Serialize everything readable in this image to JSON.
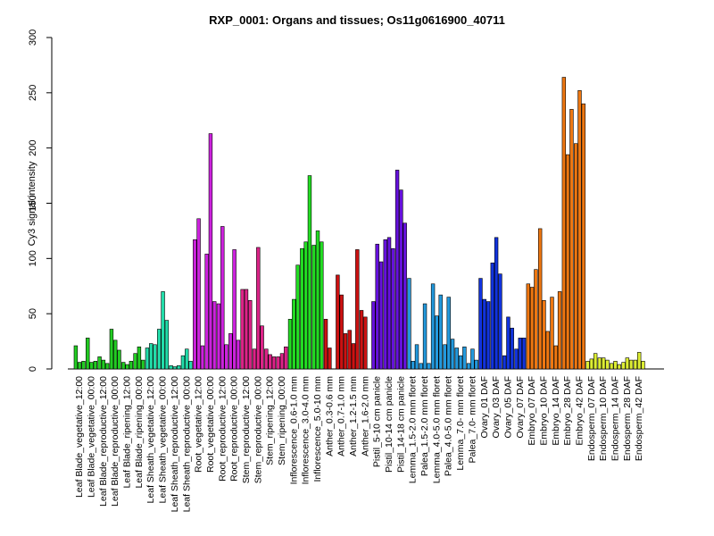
{
  "chart_data": {
    "type": "bar",
    "title": "RXP_0001: Organs and tissues; Os11g0616900_40711",
    "ylabel": "Cy3 signal intensity",
    "xlabel": "",
    "ylim": [
      0,
      300
    ],
    "yticks": [
      0,
      50,
      100,
      150,
      200,
      250,
      300
    ],
    "grid": false,
    "legend": "none",
    "categories": [
      "Leaf Blade_vegetative_12:00",
      "Leaf Blade_vegetative_00:00",
      "Leaf Blade_reproductive_12:00",
      "Leaf Blade_reproductive_00:00",
      "Leaf Blade_ripening_12:00",
      "Leaf Blade_ripening_00:00",
      "Leaf Sheath_vegetative_12:00",
      "Leaf Sheath_vegetative_00:00",
      "Leaf Sheath_reproductive_12:00",
      "Leaf Sheath_reproductive_00:00",
      "Root_vegetative_12:00",
      "Root_vegetative_00:00",
      "Root_reproductive_12:00",
      "Root_reproductive_00:00",
      "Stem_reproductive_12:00",
      "Stem_reproductive_00:00",
      "Stem_ripening_12:00",
      "Stem_ripening_00:00",
      "Inflorescence_0.6-1.0 mm",
      "Inflorescence_3.0-4.0 mm",
      "Inflorescence_5.0-10 mm",
      "Anther_0.3-0.6 mm",
      "Anther_0.7-1.0 mm",
      "Anther_1.2-1.5 mm",
      "Anther_1.6-2.0 mm",
      "Pistil_5-10 cm panicle",
      "Pistil_10-14 cm panicle",
      "Pistil_14-18 cm panicle",
      "Lemma_1.5-2.0 mm floret",
      "Palea_1.5-2.0 mm floret",
      "Lemma_4.0-5.0 mm floret",
      "Palea_4.0-5.0 mm floret",
      "Lemma_7.0- mm floret",
      "Palea_7.0- mm floret",
      "Ovary_01 DAF",
      "Ovary_03 DAF",
      "Ovary_05 DAF",
      "Ovary_07 DAF",
      "Embryo_07 DAF",
      "Embryo_10 DAF",
      "Embryo_14 DAF",
      "Embryo_28 DAF",
      "Embryo_42 DAF",
      "Endosperm_07 DAF",
      "Endosperm_10 DAF",
      "Endosperm_14 DAF",
      "Endosperm_28 DAF",
      "Endosperm_42 DAF"
    ],
    "values": [
      [
        21,
        6,
        7
      ],
      [
        28,
        6,
        7
      ],
      [
        11,
        8,
        5
      ],
      [
        36,
        26,
        17
      ],
      [
        6,
        4,
        7
      ],
      [
        14,
        20,
        8
      ],
      [
        19,
        23,
        22
      ],
      [
        36,
        70,
        44
      ],
      [
        3,
        2,
        3
      ],
      [
        12,
        18,
        7
      ],
      [
        117,
        136,
        21
      ],
      [
        104,
        213,
        61
      ],
      [
        59,
        129,
        22
      ],
      [
        32,
        108,
        26
      ],
      [
        72,
        72,
        62
      ],
      [
        18,
        110,
        39
      ],
      [
        18,
        13,
        11
      ],
      [
        11,
        14,
        20
      ],
      [
        45,
        63,
        94
      ],
      [
        109,
        115,
        175
      ],
      [
        112,
        125,
        115
      ],
      [
        45,
        19,
        0
      ],
      [
        85,
        67,
        32
      ],
      [
        35,
        23,
        108
      ],
      [
        53,
        47,
        0
      ],
      [
        61,
        113,
        97
      ],
      [
        117,
        119,
        109
      ],
      [
        180,
        162,
        132
      ],
      [
        82,
        7,
        22
      ],
      [
        5,
        59,
        5
      ],
      [
        77,
        48,
        67
      ],
      [
        22,
        65,
        27
      ],
      [
        19,
        12,
        20
      ],
      [
        5,
        18,
        8
      ],
      [
        82,
        63,
        61
      ],
      [
        96,
        119,
        86
      ],
      [
        12,
        47,
        37
      ],
      [
        18,
        28,
        28
      ],
      [
        77,
        74,
        90
      ],
      [
        127,
        62,
        34
      ],
      [
        65,
        21,
        70
      ],
      [
        264,
        194,
        235
      ],
      [
        204,
        252,
        240
      ],
      [
        7,
        9,
        14
      ],
      [
        10,
        10,
        8
      ],
      [
        5,
        7,
        4
      ],
      [
        6,
        10,
        8
      ],
      [
        8,
        15,
        7
      ]
    ],
    "colors": [
      "#22cc22",
      "#22cc22",
      "#22cc22",
      "#22cc22",
      "#22cc22",
      "#22cc22",
      "#22ddaa",
      "#22ddaa",
      "#22ddaa",
      "#22ddaa",
      "#cc22dd",
      "#cc22dd",
      "#cc22dd",
      "#cc22dd",
      "#dd2288",
      "#dd2288",
      "#dd2288",
      "#dd2288",
      "#22dd22",
      "#22dd22",
      "#22dd22",
      "#cc1111",
      "#cc1111",
      "#cc1111",
      "#cc1111",
      "#6611dd",
      "#6611dd",
      "#6611dd",
      "#2299dd",
      "#2299dd",
      "#2299dd",
      "#2299dd",
      "#2299dd",
      "#2299dd",
      "#1133dd",
      "#1133dd",
      "#1133dd",
      "#1133dd",
      "#ee7711",
      "#ee7711",
      "#ee7711",
      "#ee7711",
      "#ee7711",
      "#ddee33",
      "#ddee33",
      "#ddee33",
      "#ddee33",
      "#ddee33"
    ]
  }
}
